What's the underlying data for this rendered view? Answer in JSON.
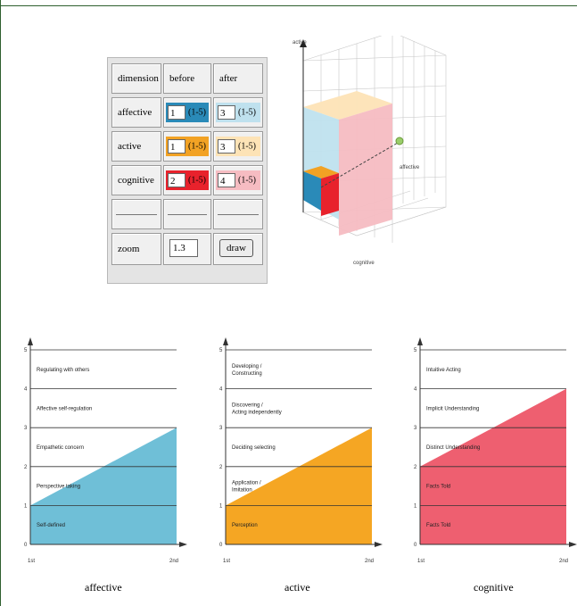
{
  "table": {
    "headers": [
      "dimension",
      "before",
      "after"
    ],
    "rows": [
      {
        "label": "affective",
        "before": "1",
        "after": "3",
        "range": "(1-5)"
      },
      {
        "label": "active",
        "before": "1",
        "after": "3",
        "range": "(1-5)"
      },
      {
        "label": "cognitive",
        "before": "2",
        "after": "4",
        "range": "(1-5)"
      }
    ],
    "zoom_label": "zoom",
    "zoom_value": "1.3",
    "draw_label": "draw"
  },
  "colors": {
    "affective_before": "#2a8ab8",
    "affective_after": "#bfe1ee",
    "active_before": "#f2a224",
    "active_after": "#fde3b6",
    "cognitive_before": "#e8222c",
    "cognitive_after": "#f6bcc2",
    "affective_fill": "#6fbfd7",
    "active_fill": "#f5a623",
    "cognitive_fill": "#ee5f70"
  },
  "cube": {
    "axis_up": "active",
    "axis_front": "cognitive",
    "axis_right": "affective"
  },
  "chart_data": [
    {
      "type": "area",
      "x": [
        "1st",
        "2nd"
      ],
      "values": [
        1,
        3
      ],
      "ylim": [
        0,
        5
      ],
      "yticks": [
        "0",
        "1",
        "2",
        "3",
        "4",
        "5"
      ],
      "level_labels": [
        "Self-defined",
        "Perspective taking",
        "Empathetic concern",
        "Affective self-regulation",
        "Regulating with others"
      ],
      "xlabel": "affective"
    },
    {
      "type": "area",
      "x": [
        "1st",
        "2nd"
      ],
      "values": [
        1,
        3
      ],
      "ylim": [
        0,
        5
      ],
      "yticks": [
        "0",
        "1",
        "2",
        "3",
        "4",
        "5"
      ],
      "level_labels": [
        "Perception",
        "Application / Imitation",
        "Deciding selecting",
        "Discovering / Acting independently",
        "Developing / Constructing"
      ],
      "xlabel": "active"
    },
    {
      "type": "area",
      "x": [
        "1st",
        "2nd"
      ],
      "values": [
        2,
        4
      ],
      "ylim": [
        0,
        5
      ],
      "yticks": [
        "0",
        "1",
        "2",
        "3",
        "4",
        "5"
      ],
      "level_labels": [
        "Facts Told",
        "Facts Told",
        "Distinct Understanding",
        "Implicit Understanding",
        "Intuitive Acting"
      ],
      "xlabel": "cognitive"
    }
  ]
}
